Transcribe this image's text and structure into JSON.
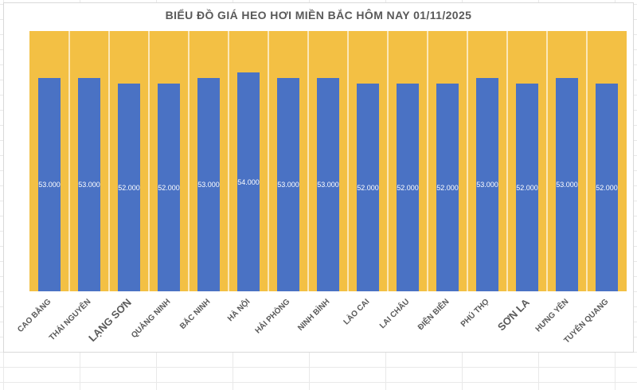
{
  "chart_data": {
    "type": "bar",
    "title": "BIỂU ĐỒ GIÁ HEO HƠI MIỀN BẮC HÔM NAY 01/11/2025",
    "categories": [
      "CAO BẰNG",
      "THÁI NGUYÊN",
      "LẠNG SƠN",
      "QUẢNG NINH",
      "BẮC NINH",
      "HÀ NỘI",
      "HẢI PHÒNG",
      "NINH BÌNH",
      "LÀO CAI",
      "LAI CHÂU",
      "ĐIỆN BIÊN",
      "PHÚ THỌ",
      "SƠN LA",
      "HƯNG YÊN",
      "TUYÊN QUANG"
    ],
    "values": [
      53000,
      53000,
      52000,
      52000,
      53000,
      54000,
      53000,
      53000,
      52000,
      52000,
      52000,
      53000,
      52000,
      53000,
      52000
    ],
    "value_labels": [
      "53.000",
      "53.000",
      "52.000",
      "52.000",
      "53.000",
      "54.000",
      "53.000",
      "53.000",
      "52.000",
      "52.000",
      "52.000",
      "53.000",
      "52.000",
      "53.000",
      "52.000"
    ],
    "xlabel": "",
    "ylabel": "",
    "y_axis_visible": false,
    "legend": null,
    "gridlines": "vertical-white-category-separators",
    "colors": {
      "bar_fill": "#4a72c4",
      "plot_background": "#f3c044",
      "value_label_text": "#ffffff",
      "title_text": "#595959",
      "axis_label_text": "#595959",
      "chart_border": "#d9d9d9"
    }
  }
}
